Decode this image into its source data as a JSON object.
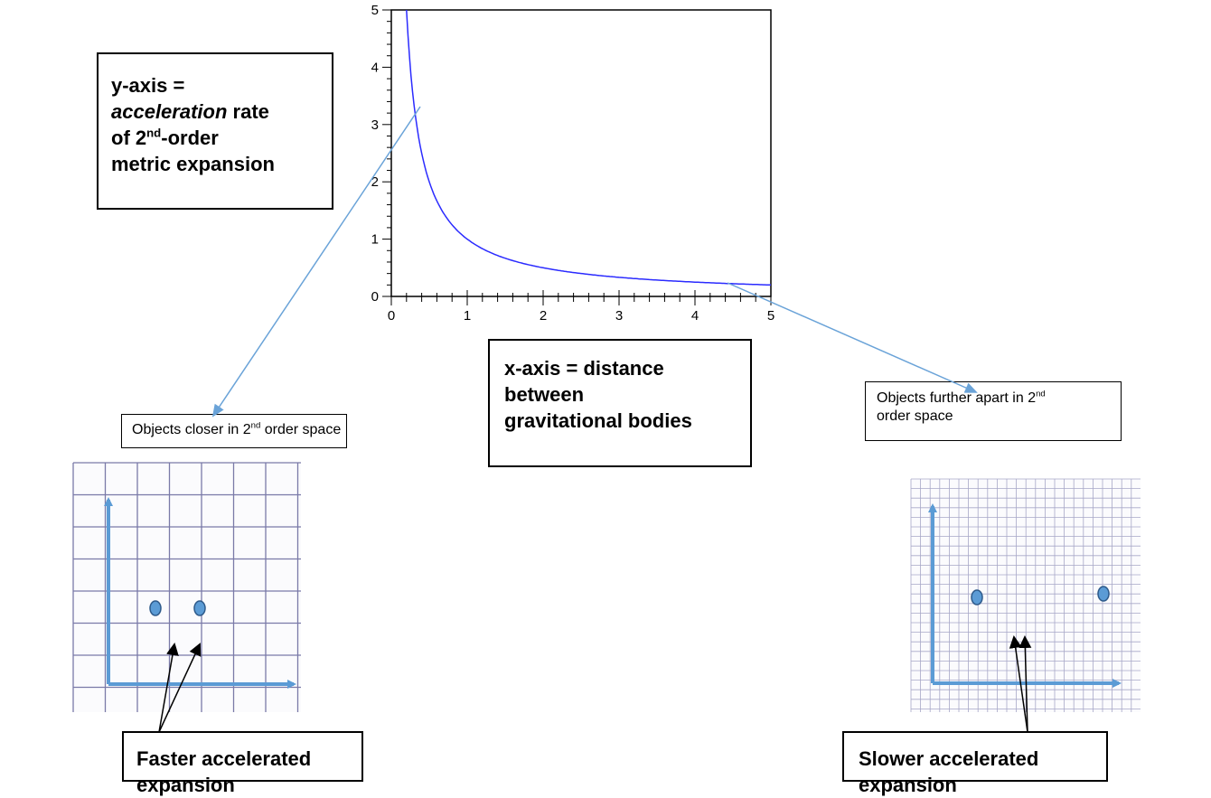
{
  "chart_data": {
    "type": "line",
    "function": "y = 1/x",
    "x": [
      0.2,
      0.25,
      0.3,
      0.35,
      0.4,
      0.5,
      0.6,
      0.7,
      0.8,
      0.9,
      1.0,
      1.2,
      1.5,
      2.0,
      2.5,
      3.0,
      3.5,
      4.0,
      4.5,
      5.0
    ],
    "y": [
      5.0,
      4.0,
      3.333,
      2.857,
      2.5,
      2.0,
      1.667,
      1.429,
      1.25,
      1.111,
      1.0,
      0.833,
      0.667,
      0.5,
      0.4,
      0.333,
      0.286,
      0.25,
      0.222,
      0.2
    ],
    "xlim": [
      0,
      5
    ],
    "ylim": [
      0,
      5
    ],
    "xticks": [
      "0",
      "1",
      "2",
      "3",
      "4",
      "5"
    ],
    "yticks": [
      "0",
      "1",
      "2",
      "3",
      "4",
      "5"
    ],
    "line_color": "#2b2bff",
    "title": "",
    "xlabel": "",
    "ylabel": ""
  },
  "labels": {
    "y_axis": {
      "line1": "y-axis =",
      "acceleration": "acceleration",
      "rate": " rate",
      "of2": "of 2",
      "nd": "nd",
      "order": "-order",
      "line4": "metric expansion"
    },
    "x_axis": {
      "line1": "x-axis = distance",
      "line2": "between",
      "line3": "gravitational bodies"
    },
    "near": {
      "before": "Objects closer in 2",
      "sup": "nd",
      "after": " order space"
    },
    "far": {
      "before": "Objects further apart in 2",
      "sup": "nd",
      "line2": "order space"
    },
    "faster": "Faster accelerated expansion",
    "slower": "Slower accelerated expansion"
  },
  "colors": {
    "pointer_line": "#6aa3d8",
    "axis_arrow": "#5b9bd5",
    "body_fill": "#5b9bd5",
    "body_stroke": "#2e5a8a",
    "grid_line": "#7a7aa8"
  }
}
